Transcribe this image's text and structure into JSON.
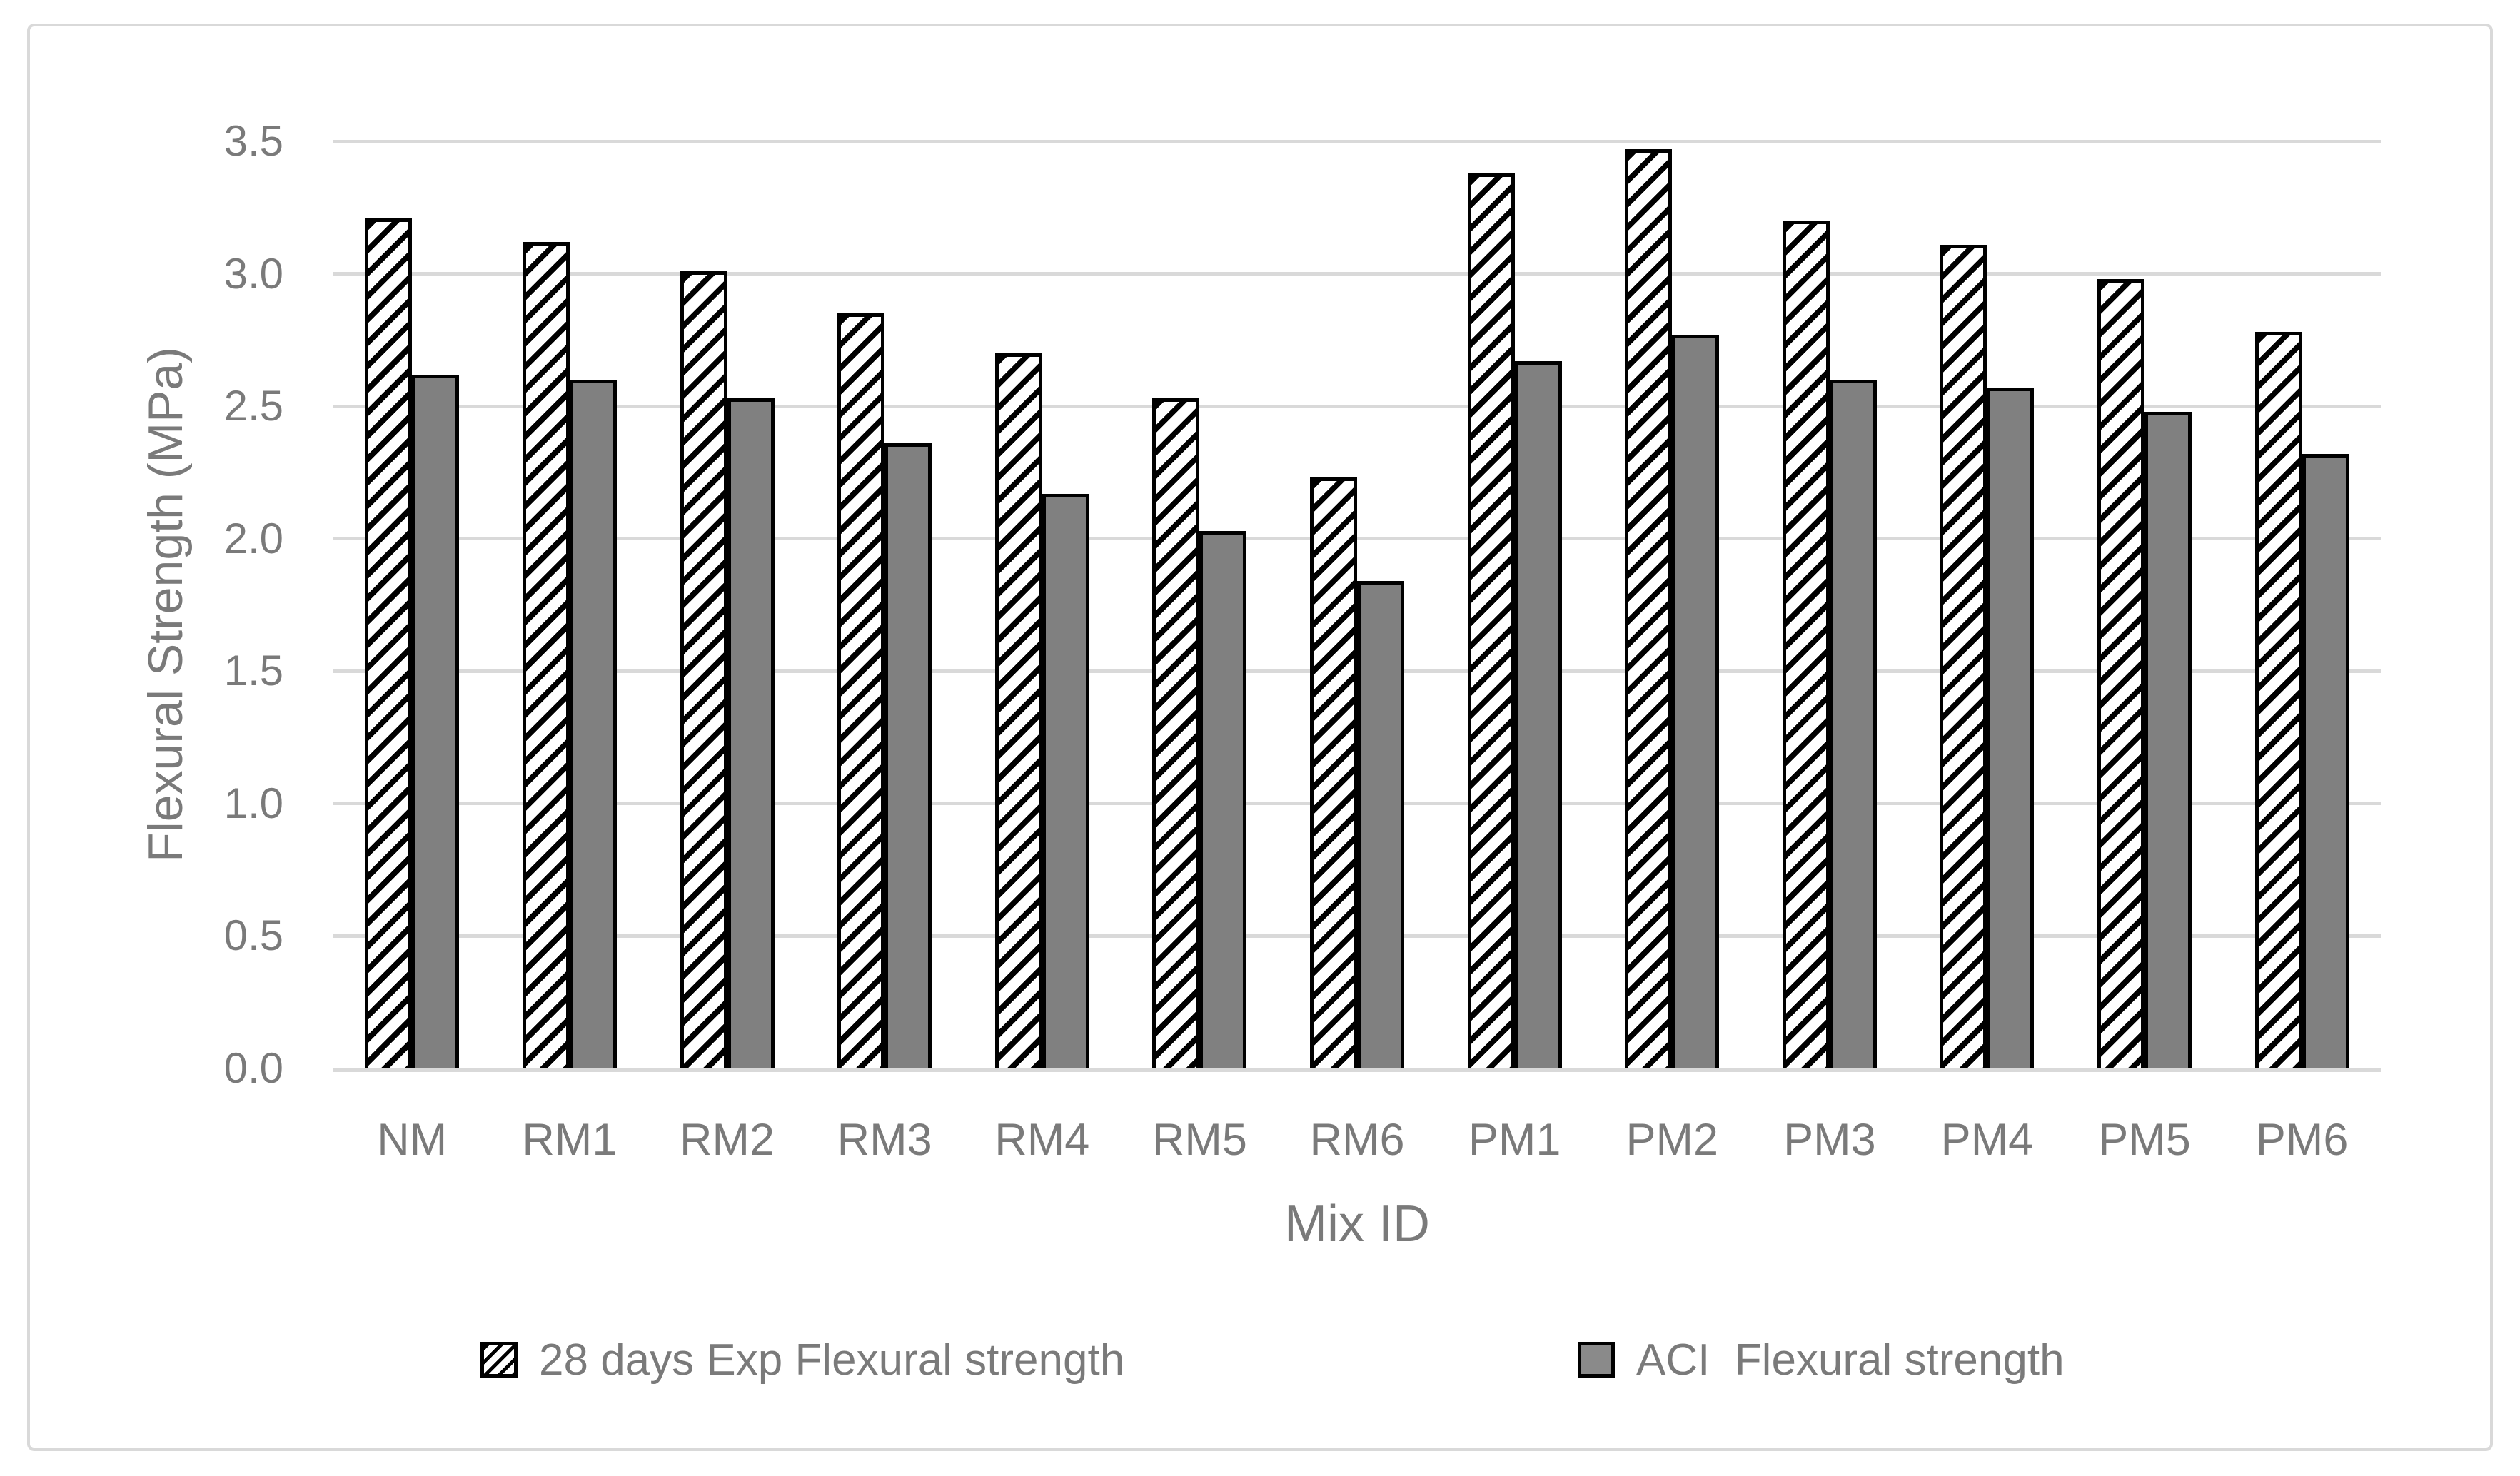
{
  "chart_data": {
    "type": "bar",
    "title": "",
    "xlabel": "Mix ID",
    "ylabel": "Flexural Strength (MPa)",
    "categories": [
      "NM",
      "RM1",
      "RM2",
      "RM3",
      "RM4",
      "RM5",
      "RM6",
      "PM1",
      "PM2",
      "PM3",
      "PM4",
      "PM5",
      "PM6"
    ],
    "series": [
      {
        "name": "28 days Exp Flexural strength",
        "style": "hatched-diagonal",
        "values": [
          3.21,
          3.12,
          3.01,
          2.85,
          2.7,
          2.53,
          2.23,
          3.38,
          3.47,
          3.2,
          3.11,
          2.98,
          2.78
        ]
      },
      {
        "name": "ACI  Flexural strength",
        "style": "solid-gray",
        "values": [
          2.62,
          2.6,
          2.53,
          2.36,
          2.17,
          2.03,
          1.84,
          2.67,
          2.77,
          2.6,
          2.57,
          2.48,
          2.32
        ]
      }
    ],
    "ylim": [
      0,
      3.5
    ],
    "ytick_step": 0.5,
    "ytick_labels": [
      "0.0",
      "0.5",
      "1.0",
      "1.5",
      "2.0",
      "2.5",
      "3.0",
      "3.5"
    ],
    "grid": true,
    "legend_position": "bottom",
    "colors": {
      "bar_fill_gray": "#808080",
      "bar_border": "#000000",
      "hatch_foreground": "#000000",
      "hatch_background": "#ffffff",
      "gridline": "#d9d9d9",
      "axis_text": "#7a7a7a",
      "figure_border": "#d9d9d9",
      "background": "#ffffff"
    }
  }
}
